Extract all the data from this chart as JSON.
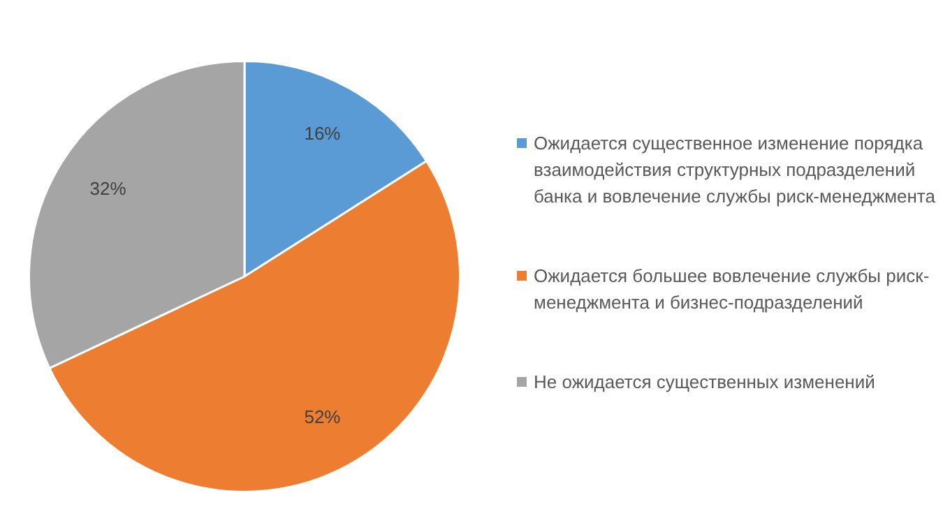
{
  "chart_data": {
    "type": "pie",
    "categories": [
      "Ожидается существенное изменение порядка взаимодействия структурных подразделений банка и вовлечение службы риск-менеджмента",
      "Ожидается большее вовлечение службы риск-менеджмента и бизнес-подразделений",
      "Не ожидается существенных изменений"
    ],
    "values": [
      16,
      52,
      32
    ],
    "colors": [
      "#5b9bd5",
      "#ed7d31",
      "#a5a5a5"
    ],
    "value_labels": [
      "16%",
      "52%",
      "32%"
    ],
    "legend": "right"
  }
}
